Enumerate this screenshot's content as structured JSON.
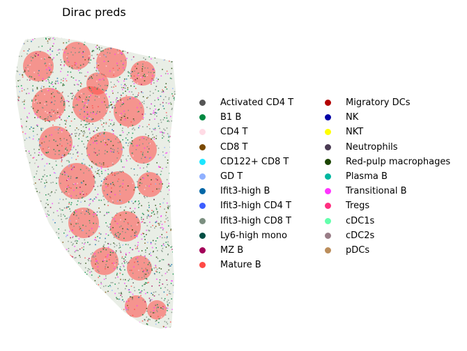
{
  "chart_data": {
    "type": "scatter",
    "title": "Dirac preds",
    "xlabel": "",
    "ylabel": "",
    "axes_visible": false,
    "legend_placement": "right",
    "legend_columns": 2,
    "categories": [
      {
        "name": "Activated CD4 T",
        "color": "#555555"
      },
      {
        "name": "B1 B",
        "color": "#008941"
      },
      {
        "name": "CD4 T",
        "color": "#FFDBE5"
      },
      {
        "name": "CD8 T",
        "color": "#7A4900"
      },
      {
        "name": "CD122+ CD8 T",
        "color": "#1CE6FF"
      },
      {
        "name": "GD T",
        "color": "#8FB0FF"
      },
      {
        "name": "Ifit3-high B",
        "color": "#0066A6"
      },
      {
        "name": "Ifit3-high CD4 T",
        "color": "#3B5DFF"
      },
      {
        "name": "Ifit3-high CD8 T",
        "color": "#7B8F80"
      },
      {
        "name": "Ly6-high mono",
        "color": "#004D43"
      },
      {
        "name": "MZ B",
        "color": "#A30059"
      },
      {
        "name": "Mature B",
        "color": "#FF4A46"
      },
      {
        "name": "Migratory DCs",
        "color": "#B30000"
      },
      {
        "name": "NK",
        "color": "#0000A6"
      },
      {
        "name": "NKT",
        "color": "#FFFF00"
      },
      {
        "name": "Neutrophils",
        "color": "#4A3B53"
      },
      {
        "name": "Red-pulp macrophages",
        "color": "#1B4400"
      },
      {
        "name": "Plasma B",
        "color": "#00B7A0"
      },
      {
        "name": "Transitional B",
        "color": "#FF34FF"
      },
      {
        "name": "Tregs",
        "color": "#FF2F80"
      },
      {
        "name": "cDC1s",
        "color": "#63FFAC"
      },
      {
        "name": "cDC2s",
        "color": "#997D87"
      },
      {
        "name": "pDCs",
        "color": "#BB8D5B"
      }
    ]
  }
}
